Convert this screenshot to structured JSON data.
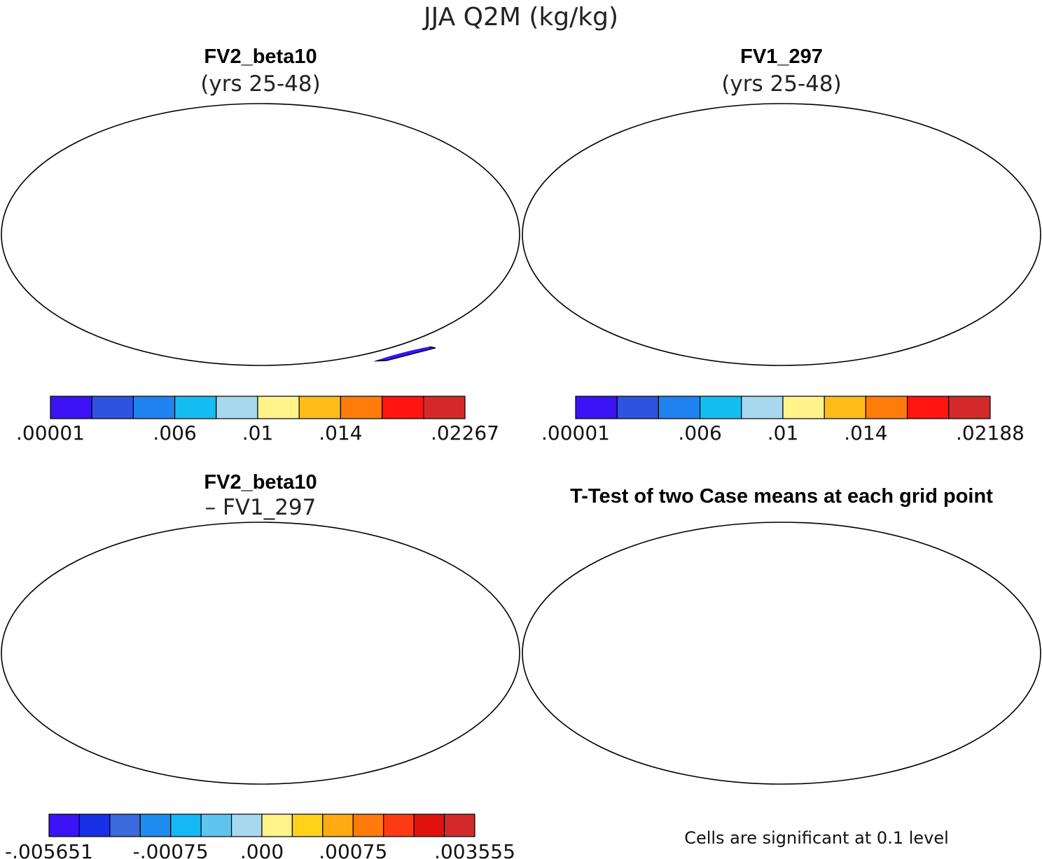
{
  "figure_title": "JJA Q2M (kg/kg)",
  "chart_data": [
    {
      "type": "heatmap",
      "id": "panel-fv2",
      "title": "FV2_beta10",
      "subtitle": "(yrs 25-48)",
      "projection": "robinson",
      "colorbar": {
        "levels": 10,
        "colors": [
          "#3b13f5",
          "#2e53e0",
          "#1f83f0",
          "#15bef2",
          "#a8d8f0",
          "#fff38a",
          "#ffbb1a",
          "#ff7b0a",
          "#ff1410",
          "#d4292a"
        ],
        "tick_labels": [
          ".00001",
          ".006",
          ".01",
          ".014",
          ".02267"
        ],
        "tick_indices": [
          0,
          3,
          5,
          7,
          10
        ],
        "min": 1e-05,
        "max": 0.02267
      }
    },
    {
      "type": "heatmap",
      "id": "panel-fv1",
      "title": "FV1_297",
      "subtitle": "(yrs 25-48)",
      "projection": "robinson",
      "colorbar": {
        "levels": 10,
        "colors": [
          "#3b13f5",
          "#2e53e0",
          "#1f83f0",
          "#15bef2",
          "#a8d8f0",
          "#fff38a",
          "#ffbb1a",
          "#ff7b0a",
          "#ff1410",
          "#d4292a"
        ],
        "tick_labels": [
          ".00001",
          ".006",
          ".01",
          ".014",
          ".02188"
        ],
        "tick_indices": [
          0,
          3,
          5,
          7,
          10
        ],
        "min": 1e-05,
        "max": 0.02188
      }
    },
    {
      "type": "heatmap",
      "id": "panel-diff",
      "title": "FV2_beta10",
      "subtitle": "– FV1_297",
      "projection": "robinson",
      "colorbar": {
        "levels": 14,
        "colors": [
          "#3b13f5",
          "#1a2fe8",
          "#3a6adb",
          "#1f8cf0",
          "#14b8f4",
          "#5fc4ee",
          "#a8d8f0",
          "#fff38a",
          "#ffd21a",
          "#ffaa10",
          "#ff7a0a",
          "#ff3a10",
          "#e0120e",
          "#d4292a"
        ],
        "tick_labels": [
          "-.005651",
          "-.00075",
          ".000",
          ".00075",
          ".003555"
        ],
        "tick_indices": [
          0,
          4,
          7,
          10,
          14
        ],
        "min": -0.005651,
        "max": 0.003555
      }
    },
    {
      "type": "heatmap",
      "id": "panel-ttest",
      "title": "T-Test of two Case means at each grid point",
      "projection": "robinson",
      "significant_color": "#ff0000",
      "note": "Cells are significant at 0.1 level"
    }
  ]
}
